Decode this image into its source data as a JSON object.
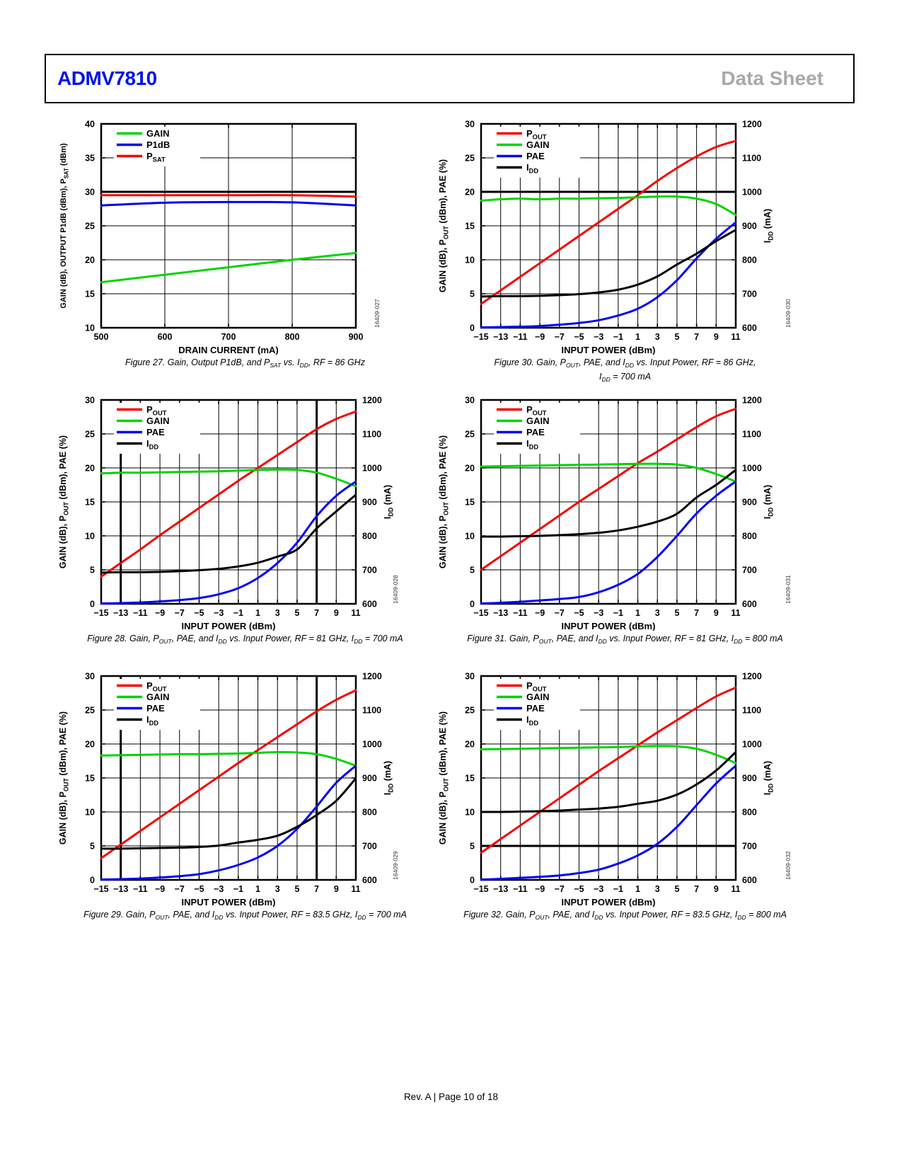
{
  "header": {
    "part": "ADMV7810",
    "part_color": "#0012ee",
    "doc_type": "Data Sheet",
    "doc_type_color": "#a7a9ac"
  },
  "footer": {
    "text": "Rev. A | Page 10 of 18"
  },
  "chart_data": [
    {
      "id": "figure-27",
      "type": "line",
      "code": "16409-027",
      "code_x": 458,
      "caption": [
        "Figure 27. Gain, Output P1dB, and P~SAT~ vs. I~DD~, RF = 86 GHz"
      ],
      "xlabel": "DRAIN CURRENT (mA)",
      "x_range": [
        500,
        900
      ],
      "x_ticks": [
        500,
        600,
        700,
        800,
        900
      ],
      "y_left": {
        "label": "GAIN (dB), OUTPUT P1dB (dBm), P~SAT~ (dBm)",
        "range": [
          10,
          40
        ],
        "ticks": [
          10,
          15,
          20,
          25,
          30,
          35,
          40
        ]
      },
      "y_right": null,
      "thick_h": [
        30
      ],
      "thick_v": [],
      "grid": true,
      "legend_position": "top-left",
      "legend": [
        {
          "label": "GAIN",
          "color": "#00d400"
        },
        {
          "label": "P1dB",
          "color": "#0202f0"
        },
        {
          "label": "P~SAT~",
          "color": "#f40000"
        }
      ],
      "x": [
        500,
        600,
        700,
        800,
        900
      ],
      "series": [
        {
          "name": "GAIN",
          "color": "#00d400",
          "axis": "left",
          "y": [
            16.7,
            17.8,
            18.9,
            20.0,
            21.0
          ]
        },
        {
          "name": "P1dB",
          "color": "#0202f0",
          "axis": "left",
          "y": [
            28.0,
            28.4,
            28.5,
            28.45,
            28.0
          ]
        },
        {
          "name": "P~SAT~",
          "color": "#f40000",
          "axis": "left",
          "y": [
            29.5,
            29.5,
            29.5,
            29.5,
            29.3
          ]
        }
      ]
    },
    {
      "id": "figure-30",
      "type": "line",
      "code": "16409-030",
      "code_x": 502,
      "caption": [
        "Figure 30. Gain, P~OUT~, PAE, and I~DD~ vs. Input Power, RF = 86 GHz,",
        "I~DD~ = 700 mA"
      ],
      "xlabel": "INPUT POWER (dBm)",
      "x_range": [
        -15,
        11
      ],
      "x_ticks": [
        -15,
        -13,
        -11,
        -9,
        -7,
        -5,
        -3,
        -1,
        1,
        3,
        5,
        7,
        9,
        11
      ],
      "y_left": {
        "label": "GAIN (dB), P~OUT~ (dBm), PAE (%)",
        "range": [
          0,
          30
        ],
        "ticks": [
          0,
          5,
          10,
          15,
          20,
          25,
          30
        ]
      },
      "y_right": {
        "label": "I~DD~ (mA)",
        "range": [
          600,
          1200
        ],
        "ticks": [
          600,
          700,
          800,
          900,
          1000,
          1100,
          1200
        ]
      },
      "thick_h": [
        20
      ],
      "thick_v": [],
      "grid": true,
      "legend_position": "top-left",
      "legend": [
        {
          "label": "P~OUT~",
          "color": "#f40000"
        },
        {
          "label": "GAIN",
          "color": "#00d400"
        },
        {
          "label": "PAE",
          "color": "#0202f0"
        },
        {
          "label": "I~DD~",
          "color": "#000000"
        }
      ],
      "x": [
        -15,
        -13,
        -11,
        -9,
        -7,
        -5,
        -3,
        -1,
        1,
        3,
        5,
        7,
        9,
        11
      ],
      "series": [
        {
          "name": "P~OUT~",
          "color": "#f40000",
          "axis": "left",
          "y": [
            3.5,
            5.5,
            7.5,
            9.5,
            11.5,
            13.5,
            15.5,
            17.5,
            19.5,
            21.6,
            23.5,
            25.2,
            26.6,
            27.5
          ]
        },
        {
          "name": "GAIN",
          "color": "#00d400",
          "axis": "left",
          "y": [
            18.7,
            18.9,
            19.0,
            18.9,
            19.0,
            19.0,
            19.05,
            19.1,
            19.2,
            19.3,
            19.3,
            19.0,
            18.2,
            16.6
          ]
        },
        {
          "name": "PAE",
          "color": "#0202f0",
          "axis": "left",
          "y": [
            0.05,
            0.1,
            0.15,
            0.25,
            0.45,
            0.7,
            1.1,
            1.8,
            2.8,
            4.5,
            7.0,
            10.2,
            13.1,
            15.5
          ]
        },
        {
          "name": "I~DD~",
          "color": "#000000",
          "axis": "right",
          "y": [
            692,
            693,
            693,
            694,
            696,
            699,
            704,
            712,
            727,
            751,
            786,
            818,
            855,
            888
          ]
        }
      ]
    },
    {
      "id": "figure-28",
      "type": "line",
      "code": "16409-028",
      "code_x": 484,
      "caption": [
        "Figure 28. Gain, P~OUT~, PAE, and I~DD~ vs. Input Power, RF = 81 GHz, I~DD~ = 700 mA"
      ],
      "xlabel": "INPUT POWER (dBm)",
      "x_range": [
        -15,
        11
      ],
      "x_ticks": [
        -15,
        -13,
        -11,
        -9,
        -7,
        -5,
        -3,
        -1,
        1,
        3,
        5,
        7,
        9,
        11
      ],
      "y_left": {
        "label": "GAIN (dB), P~OUT~ (dBm), PAE (%)",
        "range": [
          0,
          30
        ],
        "ticks": [
          0,
          5,
          10,
          15,
          20,
          25,
          30
        ]
      },
      "y_right": {
        "label": "I~DD~ (mA)",
        "range": [
          600,
          1200
        ],
        "ticks": [
          600,
          700,
          800,
          900,
          1000,
          1100,
          1200
        ]
      },
      "thick_h": [],
      "thick_v": [
        -13,
        7
      ],
      "grid": true,
      "legend_position": "top-left",
      "legend": [
        {
          "label": "P~OUT~",
          "color": "#f40000"
        },
        {
          "label": "GAIN",
          "color": "#00d400"
        },
        {
          "label": "PAE",
          "color": "#0202f0"
        },
        {
          "label": "I~DD~",
          "color": "#000000"
        }
      ],
      "x": [
        -15,
        -13,
        -11,
        -9,
        -7,
        -5,
        -3,
        -1,
        1,
        3,
        5,
        7,
        9,
        11
      ],
      "series": [
        {
          "name": "P~OUT~",
          "color": "#f40000",
          "axis": "left",
          "y": [
            4.0,
            6.0,
            8.0,
            10.1,
            12.1,
            14.1,
            16.1,
            18.1,
            20.0,
            21.9,
            23.8,
            25.7,
            27.2,
            28.3
          ]
        },
        {
          "name": "GAIN",
          "color": "#00d400",
          "axis": "left",
          "y": [
            19.2,
            19.3,
            19.3,
            19.35,
            19.4,
            19.45,
            19.5,
            19.6,
            19.7,
            19.75,
            19.7,
            19.3,
            18.4,
            17.3
          ]
        },
        {
          "name": "PAE",
          "color": "#0202f0",
          "axis": "left",
          "y": [
            0.05,
            0.1,
            0.2,
            0.35,
            0.55,
            0.85,
            1.4,
            2.3,
            3.8,
            6.0,
            9.0,
            12.9,
            15.9,
            18.0
          ]
        },
        {
          "name": "I~DD~",
          "color": "#000000",
          "axis": "right",
          "y": [
            692,
            693,
            693,
            694,
            696,
            699,
            703,
            710,
            721,
            739,
            760,
            822,
            872,
            921
          ]
        }
      ]
    },
    {
      "id": "figure-31",
      "type": "line",
      "code": "16409-031",
      "code_x": 502,
      "caption": [
        "Figure 31. Gain, P~OUT~, PAE, and I~DD~ vs. Input Power, RF = 81 GHz, I~DD~ = 800 mA"
      ],
      "xlabel": "INPUT POWER (dBm)",
      "x_range": [
        -15,
        11
      ],
      "x_ticks": [
        -15,
        -13,
        -11,
        -9,
        -7,
        -5,
        -3,
        -1,
        1,
        3,
        5,
        7,
        9,
        11
      ],
      "y_left": {
        "label": "GAIN (dB), P~OUT~ (dBm), PAE (%)",
        "range": [
          0,
          30
        ],
        "ticks": [
          0,
          5,
          10,
          15,
          20,
          25,
          30
        ]
      },
      "y_right": {
        "label": "I~DD~ (mA)",
        "range": [
          600,
          1200
        ],
        "ticks": [
          600,
          700,
          800,
          900,
          1000,
          1100,
          1200
        ]
      },
      "thick_h": [],
      "thick_v": [],
      "grid": true,
      "legend_position": "top-left",
      "legend": [
        {
          "label": "P~OUT~",
          "color": "#f40000"
        },
        {
          "label": "GAIN",
          "color": "#00d400"
        },
        {
          "label": "PAE",
          "color": "#0202f0"
        },
        {
          "label": "I~DD~",
          "color": "#000000"
        }
      ],
      "x": [
        -15,
        -13,
        -11,
        -9,
        -7,
        -5,
        -3,
        -1,
        1,
        3,
        5,
        7,
        9,
        11
      ],
      "series": [
        {
          "name": "P~OUT~",
          "color": "#f40000",
          "axis": "left",
          "y": [
            5.0,
            7.0,
            9.0,
            11.0,
            13.0,
            15.0,
            16.9,
            18.8,
            20.7,
            22.4,
            24.2,
            26.0,
            27.6,
            28.7
          ]
        },
        {
          "name": "GAIN",
          "color": "#00d400",
          "axis": "left",
          "y": [
            20.2,
            20.25,
            20.3,
            20.35,
            20.4,
            20.45,
            20.5,
            20.55,
            20.6,
            20.6,
            20.5,
            20.0,
            19.1,
            18.0
          ]
        },
        {
          "name": "PAE",
          "color": "#0202f0",
          "axis": "left",
          "y": [
            0.05,
            0.15,
            0.3,
            0.5,
            0.7,
            1.0,
            1.7,
            2.8,
            4.4,
            6.9,
            10.0,
            13.3,
            15.9,
            18.0
          ]
        },
        {
          "name": "I~DD~",
          "color": "#000000",
          "axis": "right",
          "y": [
            798,
            798,
            799,
            800,
            802,
            805,
            809,
            816,
            827,
            842,
            865,
            913,
            950,
            994
          ]
        }
      ]
    },
    {
      "id": "figure-29",
      "type": "line",
      "code": "16409-029",
      "code_x": 484,
      "caption": [
        "Figure 29. Gain, P~OUT~, PAE, and I~DD~ vs. Input Power, RF = 83.5 GHz, I~DD~ = 700 mA"
      ],
      "xlabel": "INPUT POWER (dBm)",
      "x_range": [
        -15,
        11
      ],
      "x_ticks": [
        -15,
        -13,
        -11,
        -9,
        -7,
        -5,
        -3,
        -1,
        1,
        3,
        5,
        7,
        9,
        11
      ],
      "y_left": {
        "label": "GAIN (dB), P~OUT~ (dBm), PAE (%)",
        "range": [
          0,
          30
        ],
        "ticks": [
          0,
          5,
          10,
          15,
          20,
          25,
          30
        ]
      },
      "y_right": {
        "label": "I~DD~ (mA)",
        "range": [
          600,
          1200
        ],
        "ticks": [
          600,
          700,
          800,
          900,
          1000,
          1100,
          1200
        ]
      },
      "thick_h": [],
      "thick_v": [
        -13,
        7
      ],
      "grid": true,
      "legend_position": "top-left",
      "legend": [
        {
          "label": "P~OUT~",
          "color": "#f40000"
        },
        {
          "label": "GAIN",
          "color": "#00d400"
        },
        {
          "label": "PAE",
          "color": "#0202f0"
        },
        {
          "label": "I~DD~",
          "color": "#000000"
        }
      ],
      "x": [
        -15,
        -13,
        -11,
        -9,
        -7,
        -5,
        -3,
        -1,
        1,
        3,
        5,
        7,
        9,
        11
      ],
      "series": [
        {
          "name": "P~OUT~",
          "color": "#f40000",
          "axis": "left",
          "y": [
            3.2,
            5.2,
            7.2,
            9.2,
            11.2,
            13.2,
            15.2,
            17.2,
            19.1,
            21.0,
            22.9,
            24.8,
            26.5,
            27.9
          ]
        },
        {
          "name": "GAIN",
          "color": "#00d400",
          "axis": "left",
          "y": [
            18.3,
            18.35,
            18.4,
            18.45,
            18.5,
            18.5,
            18.55,
            18.6,
            18.7,
            18.8,
            18.75,
            18.5,
            17.8,
            16.8
          ]
        },
        {
          "name": "PAE",
          "color": "#0202f0",
          "axis": "left",
          "y": [
            0.05,
            0.1,
            0.2,
            0.35,
            0.55,
            0.85,
            1.4,
            2.2,
            3.3,
            5.0,
            7.5,
            10.8,
            14.3,
            16.8
          ]
        },
        {
          "name": "I~DD~",
          "color": "#000000",
          "axis": "right",
          "y": [
            692,
            692,
            693,
            694,
            695,
            697,
            701,
            710,
            718,
            730,
            756,
            791,
            833,
            899
          ]
        }
      ]
    },
    {
      "id": "figure-32",
      "type": "line",
      "code": "16409-032",
      "code_x": 502,
      "caption": [
        "Figure 32. Gain, P~OUT~, PAE, and I~DD~ vs. Input Power, RF = 83.5 GHz, I~DD~ = 800 mA"
      ],
      "xlabel": "INPUT POWER (dBm)",
      "x_range": [
        -15,
        11
      ],
      "x_ticks": [
        -15,
        -13,
        -11,
        -9,
        -7,
        -5,
        -3,
        -1,
        1,
        3,
        5,
        7,
        9,
        11
      ],
      "y_left": {
        "label": "GAIN (dB), P~OUT~ (dBm), PAE (%)",
        "range": [
          0,
          30
        ],
        "ticks": [
          0,
          5,
          10,
          15,
          20,
          25,
          30
        ]
      },
      "y_right": {
        "label": "I~DD~ (mA)",
        "range": [
          600,
          1200
        ],
        "ticks": [
          600,
          700,
          800,
          900,
          1000,
          1100,
          1200
        ]
      },
      "thick_h": [
        5
      ],
      "thick_v": [],
      "grid": true,
      "legend_position": "top-left",
      "legend": [
        {
          "label": "P~OUT~",
          "color": "#f40000"
        },
        {
          "label": "GAIN",
          "color": "#00d400"
        },
        {
          "label": "PAE",
          "color": "#0202f0"
        },
        {
          "label": "I~DD~",
          "color": "#000000"
        }
      ],
      "x": [
        -15,
        -13,
        -11,
        -9,
        -7,
        -5,
        -3,
        -1,
        1,
        3,
        5,
        7,
        9,
        11
      ],
      "series": [
        {
          "name": "P~OUT~",
          "color": "#f40000",
          "axis": "left",
          "y": [
            4.0,
            6.0,
            8.0,
            10.0,
            12.0,
            14.0,
            16.0,
            17.9,
            19.8,
            21.7,
            23.5,
            25.3,
            27.0,
            28.3
          ]
        },
        {
          "name": "GAIN",
          "color": "#00d400",
          "axis": "left",
          "y": [
            19.2,
            19.25,
            19.3,
            19.35,
            19.4,
            19.45,
            19.5,
            19.55,
            19.65,
            19.7,
            19.65,
            19.3,
            18.4,
            17.2
          ]
        },
        {
          "name": "PAE",
          "color": "#0202f0",
          "axis": "left",
          "y": [
            0.05,
            0.15,
            0.3,
            0.45,
            0.65,
            1.0,
            1.5,
            2.4,
            3.6,
            5.3,
            7.8,
            11.0,
            14.2,
            16.8
          ]
        },
        {
          "name": "I~DD~",
          "color": "#000000",
          "axis": "right",
          "y": [
            800,
            800,
            801,
            802,
            804,
            807,
            810,
            815,
            824,
            833,
            851,
            881,
            922,
            976
          ]
        }
      ]
    }
  ]
}
